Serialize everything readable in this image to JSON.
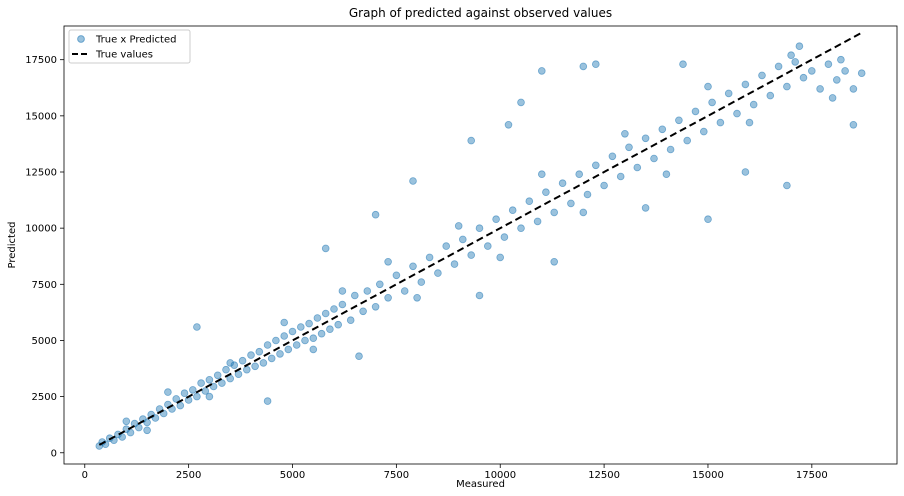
{
  "chart_data": {
    "type": "scatter",
    "title": "Graph of predicted against observed values",
    "xlabel": "Measured",
    "ylabel": "Predicted",
    "xlim": [
      -500,
      19550
    ],
    "ylim": [
      -500,
      19000
    ],
    "xticks": [
      0,
      2500,
      5000,
      7500,
      10000,
      12500,
      15000,
      17500
    ],
    "xtick_labels": [
      "0",
      "2500",
      "5000",
      "7500",
      "10000",
      "12500",
      "15000",
      "17500"
    ],
    "yticks": [
      0,
      2500,
      5000,
      7500,
      10000,
      12500,
      15000,
      17500
    ],
    "ytick_labels": [
      "0",
      "2500",
      "5000",
      "7500",
      "10000",
      "12500",
      "15000",
      "17500"
    ],
    "legend_position": "upper-left",
    "legend": [
      "True x Predicted",
      "True values"
    ],
    "grid": false,
    "colors": {
      "scatter": "#1f77b4",
      "line": "#000000"
    },
    "series": [
      {
        "name": "True x Predicted",
        "kind": "scatter",
        "points": [
          [
            350,
            300
          ],
          [
            420,
            480
          ],
          [
            500,
            380
          ],
          [
            600,
            650
          ],
          [
            700,
            560
          ],
          [
            800,
            820
          ],
          [
            900,
            700
          ],
          [
            1000,
            1050
          ],
          [
            1100,
            900
          ],
          [
            1200,
            1300
          ],
          [
            1300,
            1120
          ],
          [
            1400,
            1500
          ],
          [
            1500,
            1350
          ],
          [
            1600,
            1700
          ],
          [
            1700,
            1550
          ],
          [
            1800,
            1950
          ],
          [
            1900,
            1750
          ],
          [
            2000,
            2150
          ],
          [
            2100,
            1950
          ],
          [
            2200,
            2400
          ],
          [
            2300,
            2100
          ],
          [
            2400,
            2650
          ],
          [
            2500,
            2350
          ],
          [
            2600,
            2800
          ],
          [
            2700,
            2500
          ],
          [
            2800,
            3100
          ],
          [
            2900,
            2750
          ],
          [
            3000,
            3250
          ],
          [
            3100,
            2950
          ],
          [
            3200,
            3450
          ],
          [
            3300,
            3100
          ],
          [
            3400,
            3700
          ],
          [
            3500,
            3300
          ],
          [
            3600,
            3900
          ],
          [
            3700,
            3500
          ],
          [
            3800,
            4100
          ],
          [
            3900,
            3700
          ],
          [
            4000,
            4350
          ],
          [
            4100,
            3850
          ],
          [
            4200,
            4500
          ],
          [
            4300,
            4000
          ],
          [
            4400,
            4800
          ],
          [
            4500,
            4200
          ],
          [
            4600,
            5000
          ],
          [
            4700,
            4400
          ],
          [
            4800,
            5200
          ],
          [
            4900,
            4600
          ],
          [
            5000,
            5400
          ],
          [
            5100,
            4800
          ],
          [
            5200,
            5600
          ],
          [
            5300,
            5000
          ],
          [
            5400,
            5750
          ],
          [
            5500,
            5100
          ],
          [
            5600,
            6000
          ],
          [
            5700,
            5300
          ],
          [
            5800,
            6200
          ],
          [
            5900,
            5500
          ],
          [
            6000,
            6400
          ],
          [
            6100,
            5700
          ],
          [
            6200,
            6600
          ],
          [
            6400,
            5900
          ],
          [
            6500,
            7000
          ],
          [
            6700,
            6300
          ],
          [
            6800,
            7200
          ],
          [
            7000,
            6500
          ],
          [
            7100,
            7500
          ],
          [
            7300,
            6900
          ],
          [
            7500,
            7900
          ],
          [
            7700,
            7200
          ],
          [
            7900,
            8300
          ],
          [
            8100,
            7600
          ],
          [
            8300,
            8700
          ],
          [
            8500,
            8000
          ],
          [
            8700,
            9200
          ],
          [
            8900,
            8400
          ],
          [
            9100,
            9500
          ],
          [
            9300,
            8800
          ],
          [
            9500,
            10000
          ],
          [
            9700,
            9200
          ],
          [
            9900,
            10400
          ],
          [
            10100,
            9600
          ],
          [
            10300,
            10800
          ],
          [
            10500,
            10000
          ],
          [
            10700,
            11200
          ],
          [
            10900,
            10300
          ],
          [
            11100,
            11600
          ],
          [
            11300,
            10700
          ],
          [
            11500,
            12000
          ],
          [
            11700,
            11100
          ],
          [
            11900,
            12400
          ],
          [
            12100,
            11500
          ],
          [
            12300,
            12800
          ],
          [
            12500,
            11900
          ],
          [
            12700,
            13200
          ],
          [
            12900,
            12300
          ],
          [
            13100,
            13600
          ],
          [
            13300,
            12700
          ],
          [
            13500,
            14000
          ],
          [
            13700,
            13100
          ],
          [
            13900,
            14400
          ],
          [
            14100,
            13500
          ],
          [
            14300,
            14800
          ],
          [
            14500,
            13900
          ],
          [
            14700,
            15200
          ],
          [
            14900,
            14300
          ],
          [
            15100,
            15600
          ],
          [
            15300,
            14700
          ],
          [
            15500,
            16000
          ],
          [
            15700,
            15100
          ],
          [
            15900,
            16400
          ],
          [
            16100,
            15500
          ],
          [
            16300,
            16800
          ],
          [
            16500,
            15900
          ],
          [
            16700,
            17200
          ],
          [
            16900,
            16300
          ],
          [
            17100,
            17400
          ],
          [
            17300,
            16700
          ],
          [
            17500,
            17000
          ],
          [
            17700,
            16200
          ],
          [
            17900,
            17300
          ],
          [
            18100,
            16600
          ],
          [
            18300,
            17000
          ],
          [
            18500,
            16200
          ],
          [
            18700,
            16900
          ],
          [
            2700,
            5600
          ],
          [
            4400,
            2300
          ],
          [
            5800,
            9100
          ],
          [
            6600,
            4300
          ],
          [
            7000,
            10600
          ],
          [
            7900,
            12100
          ],
          [
            9500,
            7000
          ],
          [
            9300,
            13900
          ],
          [
            10200,
            14600
          ],
          [
            10500,
            15600
          ],
          [
            11000,
            17000
          ],
          [
            11300,
            8500
          ],
          [
            12300,
            17300
          ],
          [
            12000,
            17200
          ],
          [
            13500,
            10900
          ],
          [
            14400,
            17300
          ],
          [
            15000,
            10400
          ],
          [
            15900,
            12500
          ],
          [
            16900,
            11900
          ],
          [
            17200,
            18100
          ],
          [
            18200,
            17500
          ],
          [
            18500,
            14600
          ],
          [
            1000,
            1400
          ],
          [
            1500,
            1000
          ],
          [
            2000,
            2700
          ],
          [
            3000,
            2500
          ],
          [
            3500,
            4000
          ],
          [
            4800,
            5800
          ],
          [
            5500,
            4600
          ],
          [
            6200,
            7200
          ],
          [
            7300,
            8500
          ],
          [
            8000,
            6900
          ],
          [
            9000,
            10100
          ],
          [
            10000,
            8700
          ],
          [
            11000,
            12400
          ],
          [
            12000,
            10700
          ],
          [
            13000,
            14200
          ],
          [
            14000,
            12400
          ],
          [
            15000,
            16300
          ],
          [
            16000,
            14700
          ],
          [
            17000,
            17700
          ],
          [
            18000,
            15800
          ]
        ]
      },
      {
        "name": "True values",
        "kind": "line",
        "style": "dashed",
        "points": [
          [
            350,
            350
          ],
          [
            18750,
            18750
          ]
        ]
      }
    ]
  }
}
